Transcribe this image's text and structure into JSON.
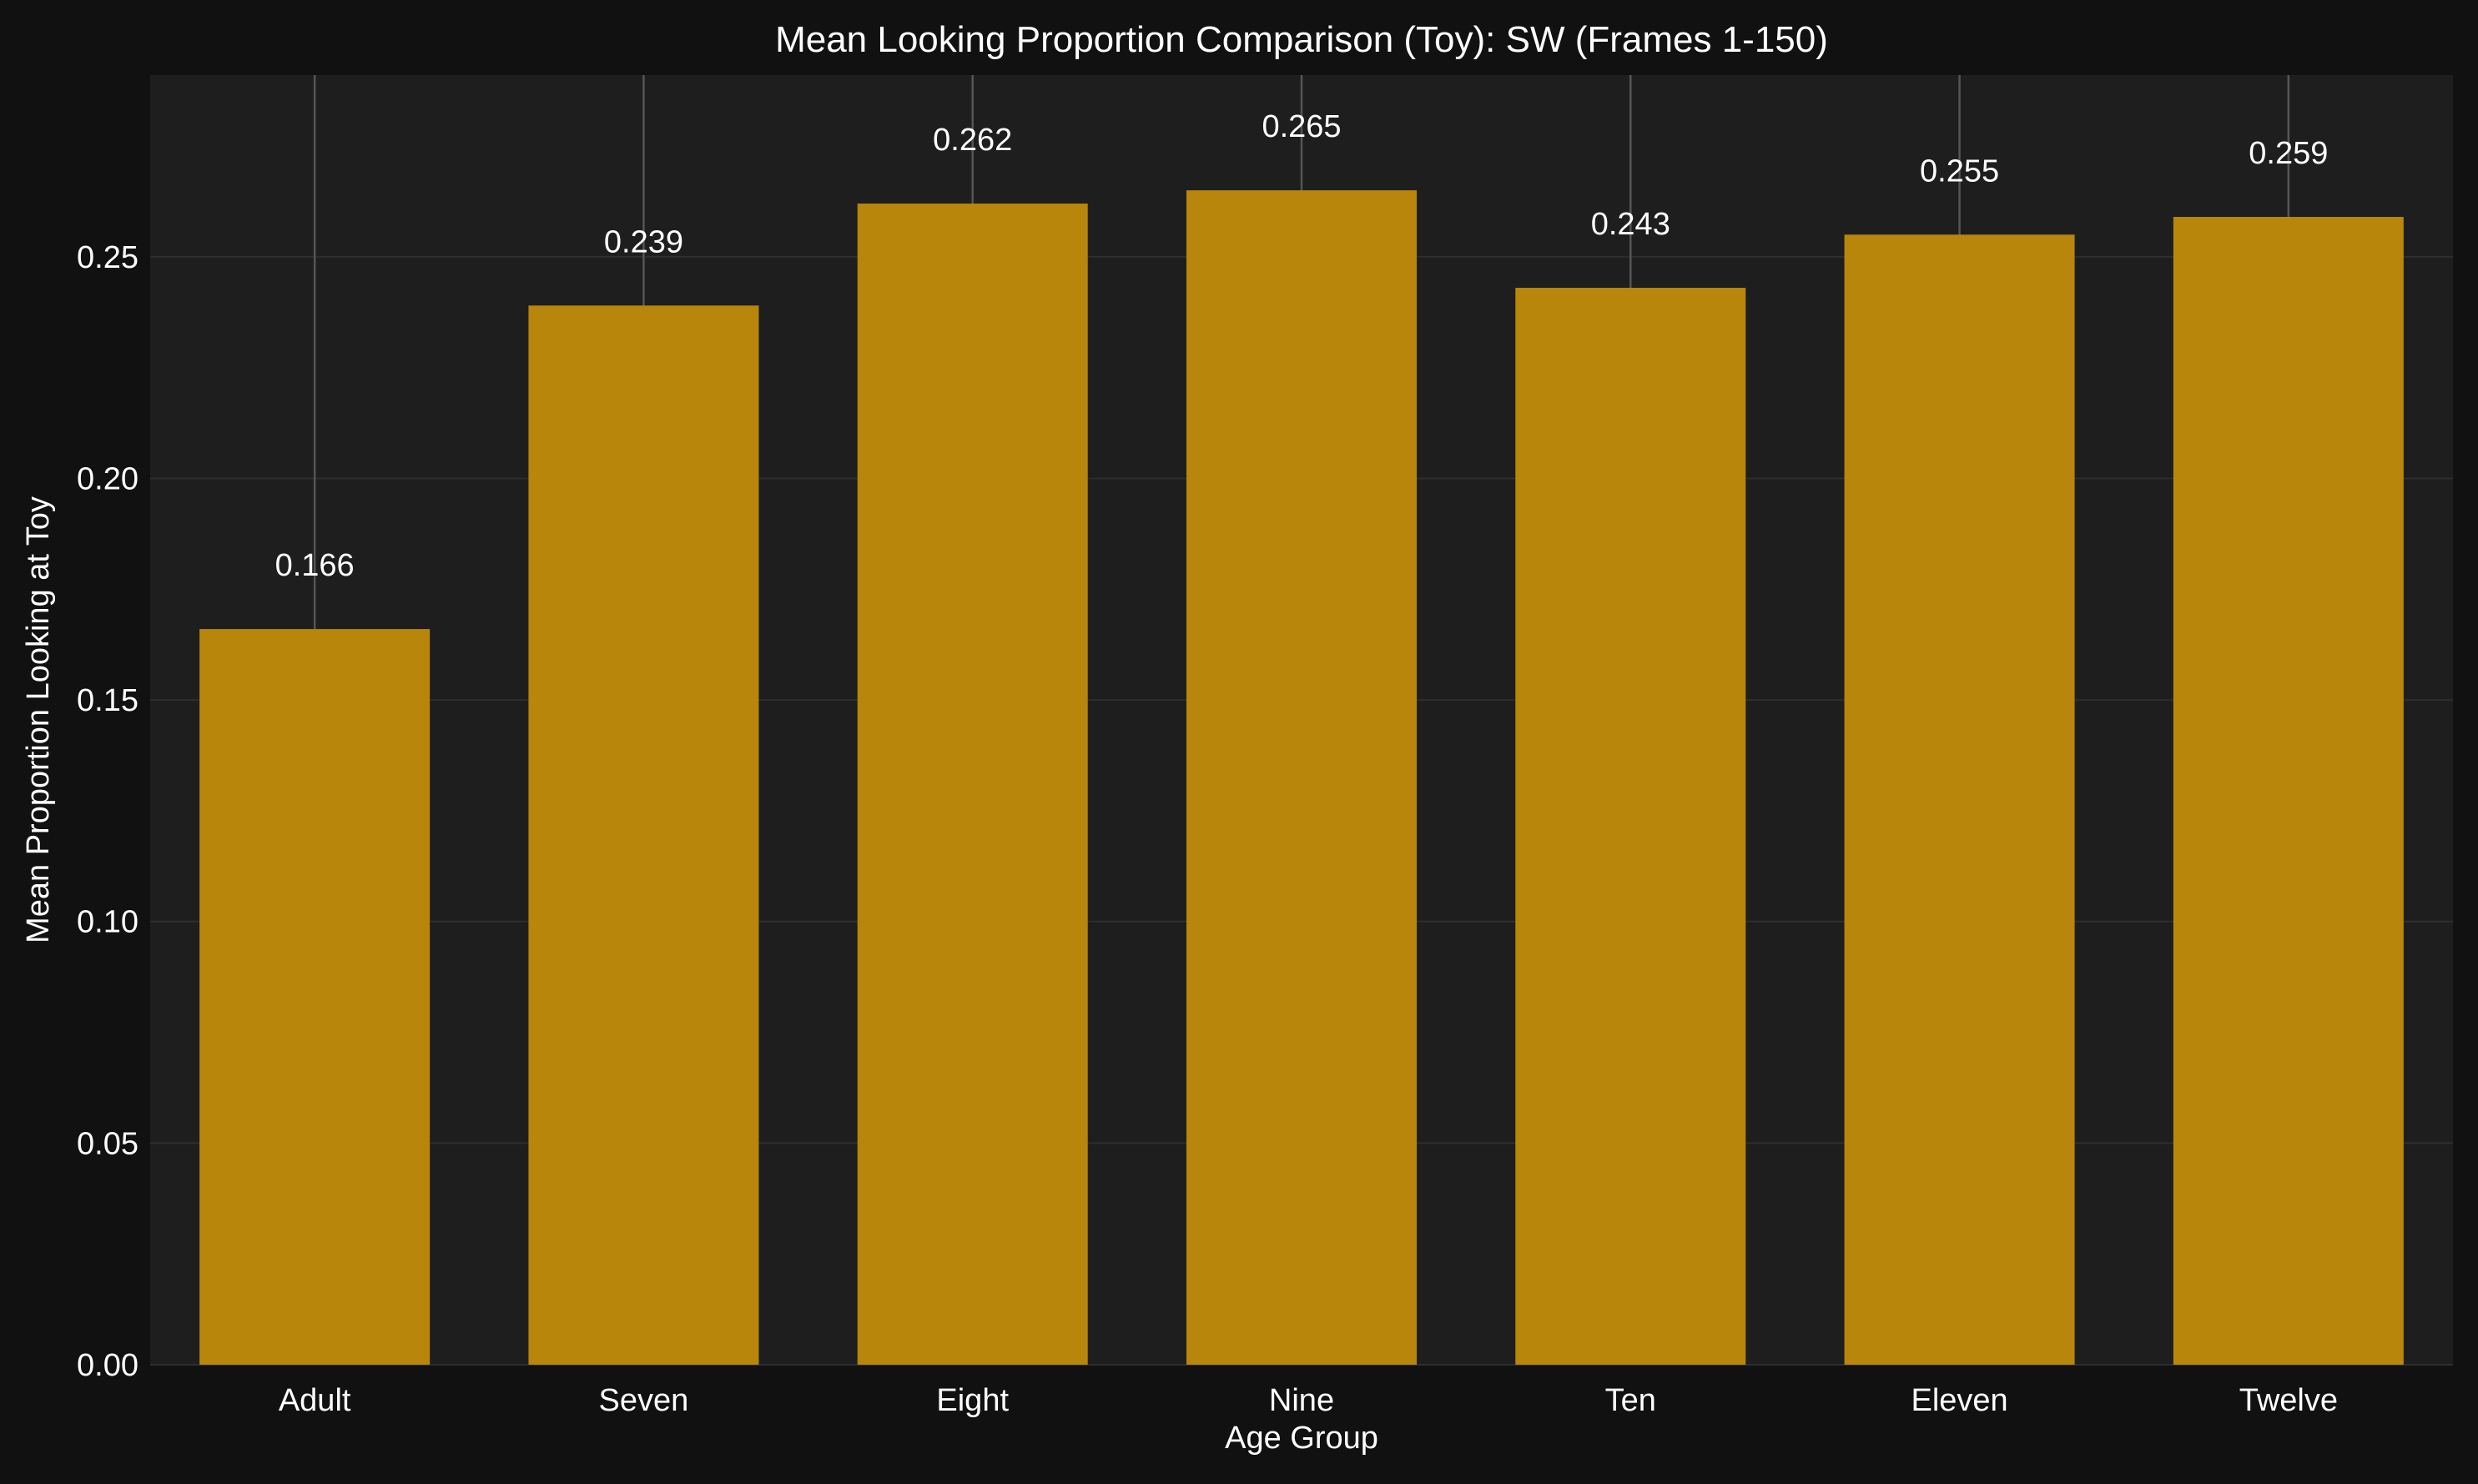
{
  "colors": {
    "figure_background": "#111111",
    "plot_background": "#1e1e1e",
    "bar": "#b8860b",
    "text": "#ffffff",
    "grid": "#2e2e2e",
    "error_line": "#555555"
  },
  "chart_data": {
    "type": "bar",
    "title": "Mean Looking Proportion Comparison (Toy): SW (Frames 1-150)",
    "xlabel": "Age Group",
    "ylabel": "Mean Proportion Looking at Toy",
    "categories": [
      "Adult",
      "Seven",
      "Eight",
      "Nine",
      "Ten",
      "Eleven",
      "Twelve"
    ],
    "values": [
      0.166,
      0.239,
      0.262,
      0.265,
      0.243,
      0.255,
      0.259
    ],
    "value_labels": [
      "0.166",
      "0.239",
      "0.262",
      "0.265",
      "0.243",
      "0.255",
      "0.259"
    ],
    "error_upper": [
      0.291,
      0.291,
      0.291,
      0.291,
      0.291,
      0.291,
      0.291
    ],
    "ylim": [
      0,
      0.291
    ],
    "yticks": [
      0.0,
      0.05,
      0.1,
      0.15,
      0.2,
      0.25
    ],
    "ytick_labels": [
      "0.00",
      "0.05",
      "0.10",
      "0.15",
      "0.20",
      "0.25"
    ],
    "grid": true,
    "legend": false
  }
}
